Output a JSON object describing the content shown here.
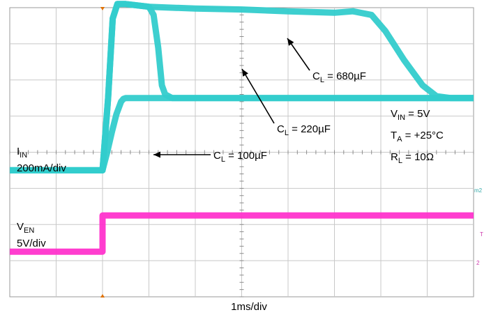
{
  "chart_data": {
    "type": "line",
    "title": "",
    "xlabel": "1ms/div",
    "x_unit": "ms",
    "xlim": [
      -2,
      8
    ],
    "grid": true,
    "divisions": {
      "x": 10,
      "y": 8
    },
    "series": [
      {
        "name": "IIN (CL = 680µF)",
        "channel": "current",
        "color": "#33cccc",
        "x": [
          -2.0,
          0.0,
          0.12,
          0.22,
          0.32,
          0.5,
          1.0,
          2.0,
          3.0,
          4.0,
          5.0,
          5.4,
          5.8,
          6.1,
          6.5,
          6.9,
          7.2,
          7.5,
          8.0
        ],
        "y_mA": [
          0,
          0,
          400,
          840,
          920,
          920,
          905,
          895,
          890,
          880,
          872,
          880,
          860,
          770,
          610,
          470,
          410,
          400,
          400
        ]
      },
      {
        "name": "IIN (CL = 220µF)",
        "channel": "current",
        "color": "#33cccc",
        "x": [
          -2.0,
          0.0,
          0.12,
          0.22,
          0.32,
          0.5,
          1.0,
          1.1,
          1.2,
          1.28,
          1.35,
          1.5,
          1.7,
          2.0,
          8.0
        ],
        "y_mA": [
          0,
          0,
          400,
          840,
          920,
          920,
          905,
          860,
          680,
          470,
          420,
          400,
          400,
          400,
          400
        ]
      },
      {
        "name": "IIN (CL = 100µF)",
        "channel": "current",
        "color": "#33cccc",
        "x": [
          -2.0,
          0.0,
          0.1,
          0.2,
          0.3,
          0.4,
          0.45,
          0.5,
          8.0
        ],
        "y_mA": [
          0,
          0,
          100,
          210,
          310,
          380,
          395,
          400,
          400
        ]
      },
      {
        "name": "VEN",
        "channel": "enable",
        "color": "#ff33cc",
        "x": [
          -2.0,
          0.0,
          0.0,
          8.0
        ],
        "y_V": [
          0,
          0,
          5,
          5
        ]
      }
    ],
    "channels": {
      "current": {
        "scale": "200mA/div",
        "ref_div_from_top": 4.5,
        "per_div": 200
      },
      "enable": {
        "scale": "5V/div",
        "ref_div_from_top": 6.75,
        "per_div": 5
      }
    },
    "annotations": {
      "cl680": "680µF",
      "cl220": "220µF",
      "cl100": "100µF",
      "cl_prefix": "C",
      "cl_sub": "L",
      "cl_eq": " = ",
      "vin_main": "V",
      "vin_sub": "IN",
      "vin_val": " = 5V",
      "ta_main": "T",
      "ta_sub": "A",
      "ta_val": " = +25°C",
      "rl_main": "R",
      "rl_sub": "L",
      "rl_val": " = 10Ω",
      "iin_main": "I",
      "iin_sub": "IN",
      "iin_scale": "200mA/div",
      "ven_main": "V",
      "ven_sub": "EN",
      "ven_scale": "5V/div"
    },
    "markers": {
      "ch1": "m2",
      "ch2": "T",
      "ch3": "2"
    }
  }
}
